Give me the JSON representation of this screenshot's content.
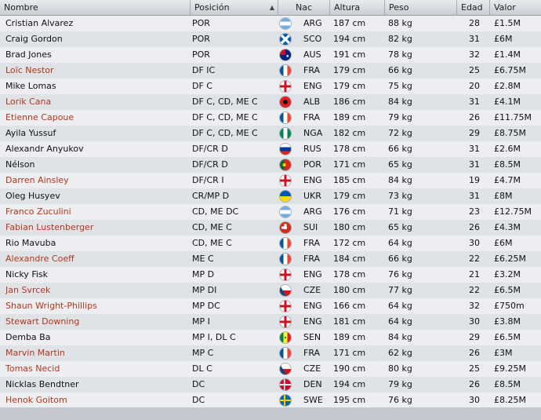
{
  "header": {
    "nombre": "Nombre",
    "posicion": "Posición",
    "nac": "Nac",
    "altura": "Altura",
    "peso": "Peso",
    "edad": "Edad",
    "valor": "Valor",
    "sort_icon": "sort-up-icon"
  },
  "colors": {
    "highlight_name": "#b5361a",
    "normal_name": "#111111"
  },
  "players": [
    {
      "name": "Cristian Alvarez",
      "pos": "POR",
      "nat": "ARG",
      "flag": "argentina-flag-icon",
      "alt": "187 cm",
      "peso": "88 kg",
      "edad": "28",
      "val": "£1.5M",
      "hl": false
    },
    {
      "name": "Craig Gordon",
      "pos": "POR",
      "nat": "SCO",
      "flag": "scotland-flag-icon",
      "alt": "194 cm",
      "peso": "82 kg",
      "edad": "31",
      "val": "£6M",
      "hl": false
    },
    {
      "name": "Brad Jones",
      "pos": "POR",
      "nat": "AUS",
      "flag": "australia-flag-icon",
      "alt": "191 cm",
      "peso": "78 kg",
      "edad": "32",
      "val": "£1.4M",
      "hl": false
    },
    {
      "name": "Loïc Nestor",
      "pos": "DF IC",
      "nat": "FRA",
      "flag": "france-flag-icon",
      "alt": "179 cm",
      "peso": "66 kg",
      "edad": "25",
      "val": "£6.75M",
      "hl": true
    },
    {
      "name": "Mike Lomas",
      "pos": "DF C",
      "nat": "ENG",
      "flag": "england-flag-icon",
      "alt": "179 cm",
      "peso": "75 kg",
      "edad": "20",
      "val": "£2.8M",
      "hl": false
    },
    {
      "name": "Lorik Cana",
      "pos": "DF C, CD, ME C",
      "nat": "ALB",
      "flag": "albania-flag-icon",
      "alt": "186 cm",
      "peso": "84 kg",
      "edad": "31",
      "val": "£4.1M",
      "hl": true
    },
    {
      "name": "Etienne Capoue",
      "pos": "DF C, CD, ME C",
      "nat": "FRA",
      "flag": "france-flag-icon",
      "alt": "189 cm",
      "peso": "79 kg",
      "edad": "26",
      "val": "£11.75M",
      "hl": true
    },
    {
      "name": "Ayila Yussuf",
      "pos": "DF C, CD, ME C",
      "nat": "NGA",
      "flag": "nigeria-flag-icon",
      "alt": "182 cm",
      "peso": "72 kg",
      "edad": "29",
      "val": "£8.75M",
      "hl": false
    },
    {
      "name": "Alexandr Anyukov",
      "pos": "DF/CR D",
      "nat": "RUS",
      "flag": "russia-flag-icon",
      "alt": "178 cm",
      "peso": "66 kg",
      "edad": "31",
      "val": "£2.6M",
      "hl": false
    },
    {
      "name": "Nélson",
      "pos": "DF/CR D",
      "nat": "POR",
      "flag": "portugal-flag-icon",
      "alt": "171 cm",
      "peso": "65 kg",
      "edad": "31",
      "val": "£8.5M",
      "hl": false
    },
    {
      "name": "Darren Ainsley",
      "pos": "DF/CR I",
      "nat": "ENG",
      "flag": "england-flag-icon",
      "alt": "185 cm",
      "peso": "84 kg",
      "edad": "19",
      "val": "£4.7M",
      "hl": true
    },
    {
      "name": "Oleg Husyev",
      "pos": "CR/MP D",
      "nat": "UKR",
      "flag": "ukraine-flag-icon",
      "alt": "179 cm",
      "peso": "73 kg",
      "edad": "31",
      "val": "£8M",
      "hl": false
    },
    {
      "name": "Franco Zuculini",
      "pos": "CD, ME DC",
      "nat": "ARG",
      "flag": "argentina-flag-icon",
      "alt": "176 cm",
      "peso": "71 kg",
      "edad": "23",
      "val": "£12.75M",
      "hl": true
    },
    {
      "name": "Fabian Lustenberger",
      "pos": "CD, ME C",
      "nat": "SUI",
      "flag": "switzerland-flag-icon",
      "alt": "180 cm",
      "peso": "65 kg",
      "edad": "26",
      "val": "£4.3M",
      "hl": true
    },
    {
      "name": "Rio Mavuba",
      "pos": "CD, ME C",
      "nat": "FRA",
      "flag": "france-flag-icon",
      "alt": "172 cm",
      "peso": "64 kg",
      "edad": "30",
      "val": "£6M",
      "hl": false
    },
    {
      "name": "Alexandre Coeff",
      "pos": "ME C",
      "nat": "FRA",
      "flag": "france-flag-icon",
      "alt": "184 cm",
      "peso": "66 kg",
      "edad": "22",
      "val": "£6.25M",
      "hl": true
    },
    {
      "name": "Nicky Fisk",
      "pos": "MP D",
      "nat": "ENG",
      "flag": "england-flag-icon",
      "alt": "178 cm",
      "peso": "76 kg",
      "edad": "21",
      "val": "£3.2M",
      "hl": false
    },
    {
      "name": "Jan Svrcek",
      "pos": "MP DI",
      "nat": "CZE",
      "flag": "czech-flag-icon",
      "alt": "180 cm",
      "peso": "77 kg",
      "edad": "22",
      "val": "£6.5M",
      "hl": true
    },
    {
      "name": "Shaun Wright-Phillips",
      "pos": "MP DC",
      "nat": "ENG",
      "flag": "england-flag-icon",
      "alt": "166 cm",
      "peso": "64 kg",
      "edad": "32",
      "val": "£750m",
      "hl": true
    },
    {
      "name": "Stewart Downing",
      "pos": "MP I",
      "nat": "ENG",
      "flag": "england-flag-icon",
      "alt": "181 cm",
      "peso": "64 kg",
      "edad": "30",
      "val": "£3.8M",
      "hl": true
    },
    {
      "name": "Demba Ba",
      "pos": "MP I, DL C",
      "nat": "SEN",
      "flag": "senegal-flag-icon",
      "alt": "189 cm",
      "peso": "84 kg",
      "edad": "29",
      "val": "£6.5M",
      "hl": false
    },
    {
      "name": "Marvin Martin",
      "pos": "MP C",
      "nat": "FRA",
      "flag": "france-flag-icon",
      "alt": "171 cm",
      "peso": "62 kg",
      "edad": "26",
      "val": "£3M",
      "hl": true
    },
    {
      "name": "Tomas Necid",
      "pos": "DL C",
      "nat": "CZE",
      "flag": "czech-flag-icon",
      "alt": "190 cm",
      "peso": "80 kg",
      "edad": "25",
      "val": "£9.25M",
      "hl": true
    },
    {
      "name": "Nicklas Bendtner",
      "pos": "DC",
      "nat": "DEN",
      "flag": "denmark-flag-icon",
      "alt": "194 cm",
      "peso": "79 kg",
      "edad": "26",
      "val": "£8.5M",
      "hl": false
    },
    {
      "name": "Henok Goitom",
      "pos": "DC",
      "nat": "SWE",
      "flag": "sweden-flag-icon",
      "alt": "195 cm",
      "peso": "76 kg",
      "edad": "30",
      "val": "£8.25M",
      "hl": true
    }
  ]
}
